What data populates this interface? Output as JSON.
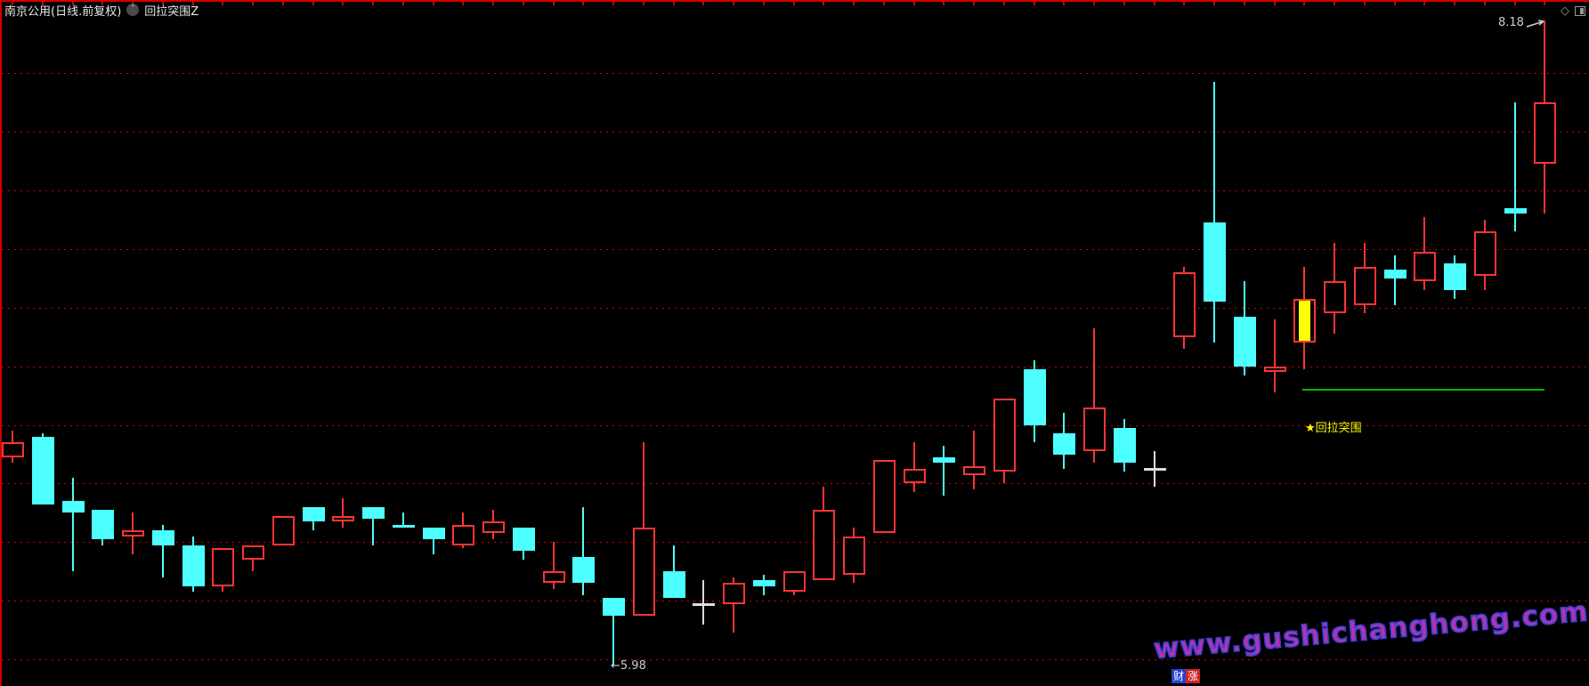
{
  "header": {
    "title": "南京公用(日线.前复权)",
    "indicator_button": "回拉突围Z"
  },
  "window_controls": {
    "diamond_icon": "◇"
  },
  "chart_data": {
    "type": "candlestick",
    "title": "南京公用 日线 前复权",
    "legend_position": "none",
    "grid": "horizontal-dotted-red",
    "price_axis": {
      "visible_high_label": "8.18",
      "visible_low_label": "5.98",
      "gridline_prices": [
        8.0,
        7.8,
        7.6,
        7.4,
        7.2,
        7.0,
        6.8,
        6.6,
        6.4,
        6.2,
        6.0
      ]
    },
    "colors": {
      "up": "#ff3434",
      "down": "#4dffff",
      "doji": "#dddddd",
      "signal_fill": "#ffff00",
      "support_line": "#00bb00",
      "grid": "#d40000",
      "background": "#000000"
    },
    "annotations": {
      "high": {
        "text": "8.18",
        "price": 8.18
      },
      "low": {
        "text": "←5.98",
        "price": 5.98
      },
      "signal": {
        "text": "★回拉突围"
      },
      "support_line": {
        "price": 6.92,
        "from_index": 43,
        "to_index": 51
      }
    },
    "candle_format": [
      "dir(u=up,d=down,j=doji,s=signal)",
      "open",
      "high",
      "low",
      "close"
    ],
    "candles": [
      [
        "u",
        6.69,
        6.78,
        6.67,
        6.74
      ],
      [
        "d",
        6.76,
        6.77,
        6.53,
        6.53
      ],
      [
        "d",
        6.54,
        6.62,
        6.3,
        6.5
      ],
      [
        "d",
        6.51,
        6.51,
        6.39,
        6.41
      ],
      [
        "u",
        6.42,
        6.5,
        6.36,
        6.44
      ],
      [
        "d",
        6.44,
        6.46,
        6.28,
        6.39
      ],
      [
        "d",
        6.39,
        6.42,
        6.23,
        6.25
      ],
      [
        "u",
        6.25,
        6.38,
        6.23,
        6.38
      ],
      [
        "u",
        6.34,
        6.39,
        6.3,
        6.39
      ],
      [
        "u",
        6.39,
        6.49,
        6.39,
        6.49
      ],
      [
        "d",
        6.52,
        6.52,
        6.44,
        6.47
      ],
      [
        "u",
        6.47,
        6.55,
        6.45,
        6.49
      ],
      [
        "d",
        6.52,
        6.52,
        6.39,
        6.48
      ],
      [
        "d",
        6.46,
        6.5,
        6.45,
        6.45
      ],
      [
        "d",
        6.45,
        6.45,
        6.36,
        6.41
      ],
      [
        "u",
        6.39,
        6.5,
        6.38,
        6.46
      ],
      [
        "u",
        6.43,
        6.51,
        6.41,
        6.47
      ],
      [
        "d",
        6.45,
        6.45,
        6.34,
        6.37
      ],
      [
        "u",
        6.26,
        6.4,
        6.24,
        6.3
      ],
      [
        "d",
        6.35,
        6.52,
        6.22,
        6.26
      ],
      [
        "d",
        6.21,
        6.21,
        5.98,
        6.15
      ],
      [
        "u",
        6.15,
        6.74,
        6.15,
        6.45
      ],
      [
        "d",
        6.3,
        6.39,
        6.21,
        6.21
      ],
      [
        "j",
        6.19,
        6.27,
        6.12,
        6.19
      ],
      [
        "u",
        6.19,
        6.28,
        6.09,
        6.26
      ],
      [
        "d",
        6.27,
        6.29,
        6.22,
        6.25
      ],
      [
        "u",
        6.23,
        6.3,
        6.22,
        6.3
      ],
      [
        "u",
        6.27,
        6.59,
        6.27,
        6.51
      ],
      [
        "u",
        6.29,
        6.45,
        6.26,
        6.42
      ],
      [
        "u",
        6.43,
        6.68,
        6.43,
        6.68
      ],
      [
        "u",
        6.6,
        6.74,
        6.57,
        6.65
      ],
      [
        "d",
        6.69,
        6.73,
        6.56,
        6.67
      ],
      [
        "u",
        6.63,
        6.78,
        6.58,
        6.66
      ],
      [
        "u",
        6.64,
        6.89,
        6.6,
        6.89
      ],
      [
        "d",
        6.99,
        7.02,
        6.74,
        6.8
      ],
      [
        "d",
        6.77,
        6.84,
        6.65,
        6.7
      ],
      [
        "u",
        6.71,
        7.13,
        6.67,
        6.86
      ],
      [
        "d",
        6.79,
        6.82,
        6.64,
        6.67
      ],
      [
        "j",
        6.65,
        6.71,
        6.59,
        6.65
      ],
      [
        "u",
        7.1,
        7.34,
        7.06,
        7.32
      ],
      [
        "d",
        7.49,
        7.97,
        7.08,
        7.22
      ],
      [
        "d",
        7.17,
        7.29,
        6.97,
        7.0
      ],
      [
        "u",
        6.98,
        7.16,
        6.91,
        7.0
      ],
      [
        "s",
        7.08,
        7.34,
        6.99,
        7.23
      ],
      [
        "u",
        7.18,
        7.42,
        7.11,
        7.29
      ],
      [
        "u",
        7.21,
        7.42,
        7.18,
        7.34
      ],
      [
        "d",
        7.33,
        7.38,
        7.21,
        7.3
      ],
      [
        "u",
        7.29,
        7.51,
        7.26,
        7.39
      ],
      [
        "d",
        7.35,
        7.38,
        7.23,
        7.26
      ],
      [
        "u",
        7.31,
        7.5,
        7.26,
        7.46
      ],
      [
        "d",
        7.54,
        7.9,
        7.46,
        7.52
      ],
      [
        "u",
        7.69,
        8.18,
        7.52,
        7.9
      ]
    ]
  },
  "footer": {
    "watermark": "www.gushichanghong.com",
    "logo_chars": [
      "财",
      "涨"
    ]
  }
}
